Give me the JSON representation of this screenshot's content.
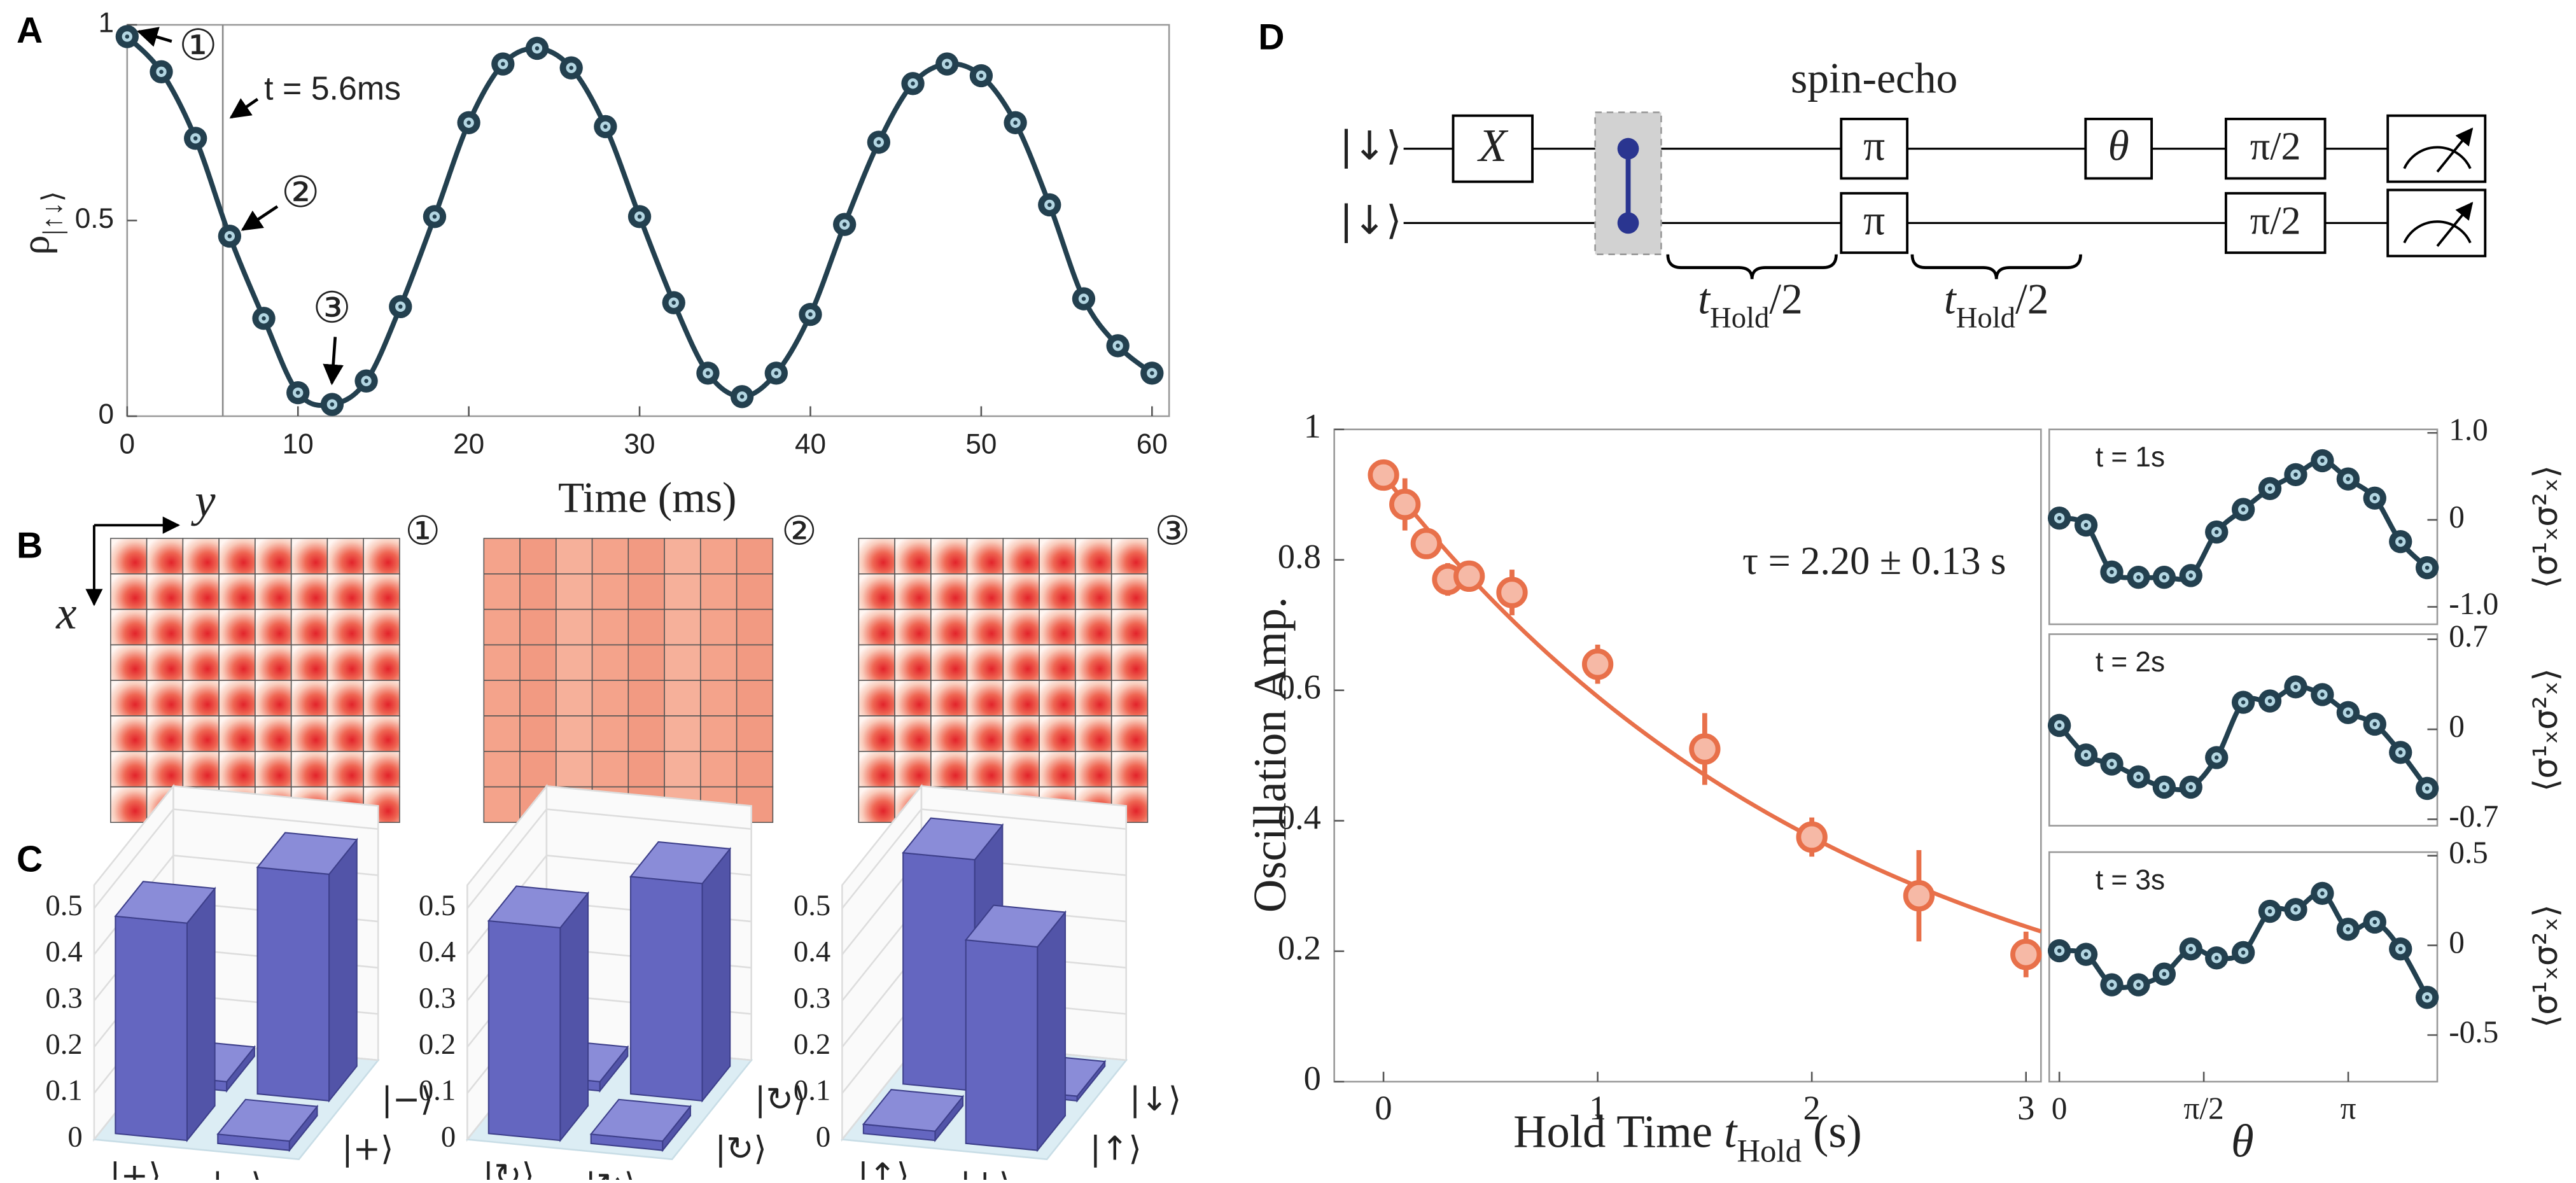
{
  "chart_data": [
    {
      "type": "line",
      "panel": "A",
      "xlabel": "Time (ms)",
      "ylabel": {
        "text": "ρ",
        "sub": "|↑↓⟩"
      },
      "x": [
        0,
        2,
        4,
        6,
        8,
        10,
        12,
        14,
        16,
        18,
        20,
        22,
        24,
        26,
        28,
        30,
        32,
        34,
        36,
        38,
        40,
        42,
        44,
        46,
        48,
        50,
        52,
        54,
        56,
        58,
        60
      ],
      "series": [
        {
          "color": "#23404f",
          "values": [
            0.97,
            0.88,
            0.71,
            0.46,
            0.25,
            0.06,
            0.03,
            0.09,
            0.28,
            0.51,
            0.75,
            0.9,
            0.94,
            0.89,
            0.74,
            0.51,
            0.29,
            0.11,
            0.05,
            0.11,
            0.26,
            0.49,
            0.7,
            0.85,
            0.9,
            0.87,
            0.75,
            0.54,
            0.3,
            0.18,
            0.11
          ]
        }
      ],
      "xlim": [
        0,
        61
      ],
      "ylim": [
        0,
        1
      ],
      "xticks": [
        0,
        10,
        20,
        30,
        40,
        50,
        60
      ],
      "yticks": [
        0,
        0.5,
        1
      ],
      "vline": 5.6,
      "annotations": [
        "①",
        "t = 5.6ms",
        "②",
        "③"
      ]
    },
    {
      "type": "bar3d",
      "panel": "C",
      "col_labels": [
        "|+⟩",
        "|−⟩"
      ],
      "row_labels": [
        "|+⟩",
        "|−⟩"
      ],
      "values": [
        [
          0.47,
          0.02
        ],
        [
          0.02,
          0.49
        ]
      ],
      "zlim": [
        0,
        0.55
      ],
      "zticks": [
        0,
        0.1,
        0.2,
        0.3,
        0.4,
        0.5
      ],
      "color": "#6466c0"
    },
    {
      "type": "bar3d",
      "col_labels": [
        "|↻⟩",
        "|↻⟩"
      ],
      "row_labels": [
        "|↻⟩",
        "|↻⟩"
      ],
      "values": [
        [
          0.46,
          0.02
        ],
        [
          0.02,
          0.47
        ]
      ],
      "zlim": [
        0,
        0.55
      ],
      "zticks": [
        0,
        0.1,
        0.2,
        0.3,
        0.4,
        0.5
      ],
      "color": "#6466c0"
    },
    {
      "type": "bar3d",
      "col_labels": [
        "|↑⟩",
        "|↓⟩"
      ],
      "row_labels": [
        "|↑⟩",
        "|↓⟩"
      ],
      "values": [
        [
          0.02,
          0.44
        ],
        [
          0.5,
          0.01
        ]
      ],
      "zlim": [
        0,
        0.55
      ],
      "zticks": [
        0,
        0.1,
        0.2,
        0.3,
        0.4,
        0.5
      ],
      "color": "#6466c0"
    },
    {
      "type": "scatter",
      "xlabel": {
        "text": "Hold Time ",
        "var": "t",
        "sub": "Hold",
        "after": " (s)"
      },
      "ylabel": "Oscillation Amp.",
      "x": [
        0,
        0.1,
        0.2,
        0.3,
        0.4,
        0.6,
        1,
        1.5,
        2,
        2.5,
        3
      ],
      "series": [
        {
          "color": "#e8704a",
          "values": [
            0.93,
            0.885,
            0.825,
            0.77,
            0.775,
            0.75,
            0.64,
            0.51,
            0.375,
            0.285,
            0.195
          ],
          "errors": [
            0.01,
            0.04,
            0.015,
            0.025,
            0.01,
            0.035,
            0.03,
            0.055,
            0.03,
            0.07,
            0.035
          ]
        }
      ],
      "xlim": [
        -0.23,
        3.07
      ],
      "ylim": [
        0,
        1
      ],
      "xticks": [
        0,
        1,
        2,
        3
      ],
      "yticks": [
        0,
        0.2,
        0.4,
        0.6,
        0.8,
        1
      ],
      "fit": {
        "tau": 2.2,
        "label": "τ = 2.20 ± 0.13 s"
      }
    },
    {
      "type": "line",
      "title": "t = 1s",
      "ylabel": "⟨σ¹ₓσ²ₓ⟩",
      "x": [
        0,
        0.29,
        0.57,
        0.86,
        1.14,
        1.43,
        1.71,
        2,
        2.29,
        2.57,
        2.86,
        3.14,
        3.43,
        3.71,
        4
      ],
      "series": [
        {
          "color": "#23404f",
          "values": [
            0.02,
            -0.06,
            -0.6,
            -0.66,
            -0.66,
            -0.64,
            -0.14,
            0.12,
            0.36,
            0.52,
            0.68,
            0.47,
            0.25,
            -0.25,
            -0.55
          ]
        }
      ],
      "xlim": [
        -0.11,
        4.11
      ],
      "ylim": [
        -1.2,
        1.04
      ],
      "yticks": [
        {
          "value": -1,
          "label": "-1.0"
        },
        0,
        {
          "value": 1,
          "label": "1.0"
        }
      ]
    },
    {
      "type": "line",
      "title": "t = 2s",
      "ylabel": "⟨σ¹ₓσ²ₓ⟩",
      "x": [
        0,
        0.29,
        0.57,
        0.86,
        1.14,
        1.43,
        1.71,
        2,
        2.29,
        2.57,
        2.86,
        3.14,
        3.43,
        3.71,
        4
      ],
      "series": [
        {
          "color": "#23404f",
          "values": [
            0.03,
            -0.2,
            -0.27,
            -0.37,
            -0.45,
            -0.45,
            -0.22,
            0.21,
            0.22,
            0.33,
            0.27,
            0.13,
            0.04,
            -0.18,
            -0.46
          ]
        }
      ],
      "xlim": [
        -0.11,
        4.11
      ],
      "ylim": [
        -0.75,
        0.74
      ],
      "yticks": [
        {
          "value": -0.7,
          "label": "-0.7"
        },
        0,
        0.7
      ]
    },
    {
      "type": "line",
      "title": "t = 3s",
      "ylabel": "⟨σ¹ₓσ²ₓ⟩",
      "xlabel": "θ",
      "x": [
        0,
        0.29,
        0.57,
        0.86,
        1.14,
        1.43,
        1.71,
        2,
        2.29,
        2.57,
        2.86,
        3.14,
        3.43,
        3.71,
        4
      ],
      "series": [
        {
          "color": "#23404f",
          "values": [
            -0.03,
            -0.05,
            -0.22,
            -0.22,
            -0.16,
            -0.02,
            -0.07,
            -0.04,
            0.19,
            0.2,
            0.29,
            0.09,
            0.13,
            -0.02,
            -0.29
          ]
        }
      ],
      "xlim": [
        -0.11,
        4.11
      ],
      "ylim": [
        -0.76,
        0.52
      ],
      "yticks": [
        {
          "value": -0.5,
          "label": "-0.5"
        },
        0,
        0.5
      ],
      "xticks": [
        0,
        {
          "value": 1.5708,
          "label": "π/2"
        },
        {
          "value": 3.1416,
          "label": "π"
        }
      ]
    }
  ],
  "figure_b": {
    "panel": "B",
    "axis_y": "y",
    "axis_x": "x",
    "labels": [
      "①",
      "②",
      "③"
    ]
  },
  "circuit": {
    "panel": "D",
    "title": "spin-echo",
    "inputs": [
      "|↓⟩",
      "|↓⟩"
    ],
    "gates": [
      "X",
      "π",
      "π",
      "θ",
      "π/2",
      "π/2"
    ],
    "intervals": [
      {
        "var": "t",
        "sub": "Hold",
        "after": "/2"
      },
      {
        "var": "t",
        "sub": "Hold",
        "after": "/2"
      }
    ]
  }
}
